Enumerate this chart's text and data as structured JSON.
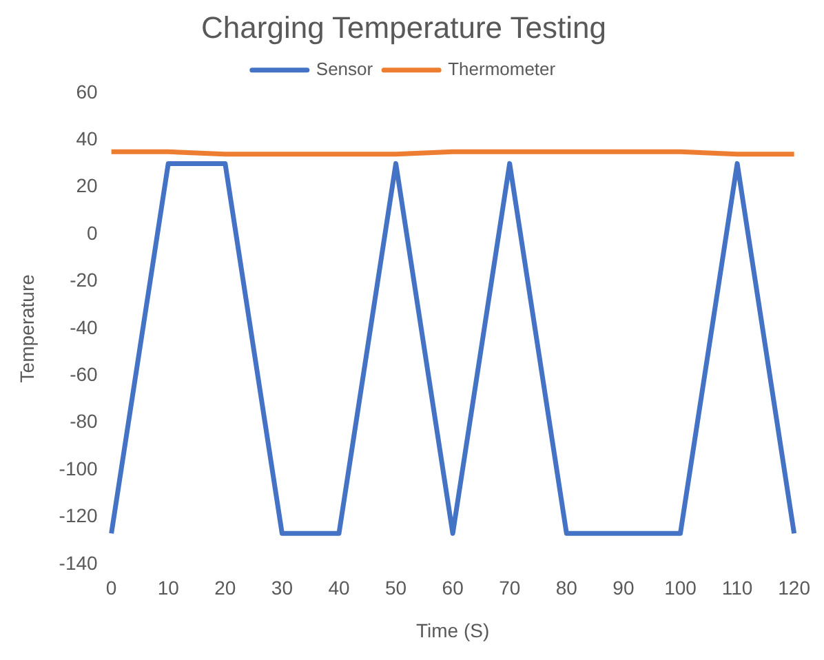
{
  "chart_data": {
    "type": "line",
    "title": "Charging Temperature Testing",
    "xlabel": "Time (S)",
    "ylabel": "Temperature",
    "categories": [
      "0",
      "10",
      "20",
      "30",
      "40",
      "50",
      "60",
      "70",
      "80",
      "90",
      "100",
      "110",
      "120"
    ],
    "series": [
      {
        "name": "Sensor",
        "color": "#4472c4",
        "values": [
          -127,
          30,
          30,
          -127,
          -127,
          30,
          -127,
          30,
          -127,
          -127,
          -127,
          30,
          -127
        ]
      },
      {
        "name": "Thermometer",
        "color": "#ed7d31",
        "values": [
          35,
          35,
          34,
          34,
          34,
          34,
          35,
          35,
          35,
          35,
          35,
          34,
          34
        ]
      }
    ],
    "ylim": [
      -140,
      60
    ],
    "yticks": [
      -140,
      -120,
      -100,
      -80,
      -60,
      -40,
      -20,
      0,
      20,
      40,
      60
    ],
    "grid": false,
    "legend": "top",
    "marker": "none"
  }
}
